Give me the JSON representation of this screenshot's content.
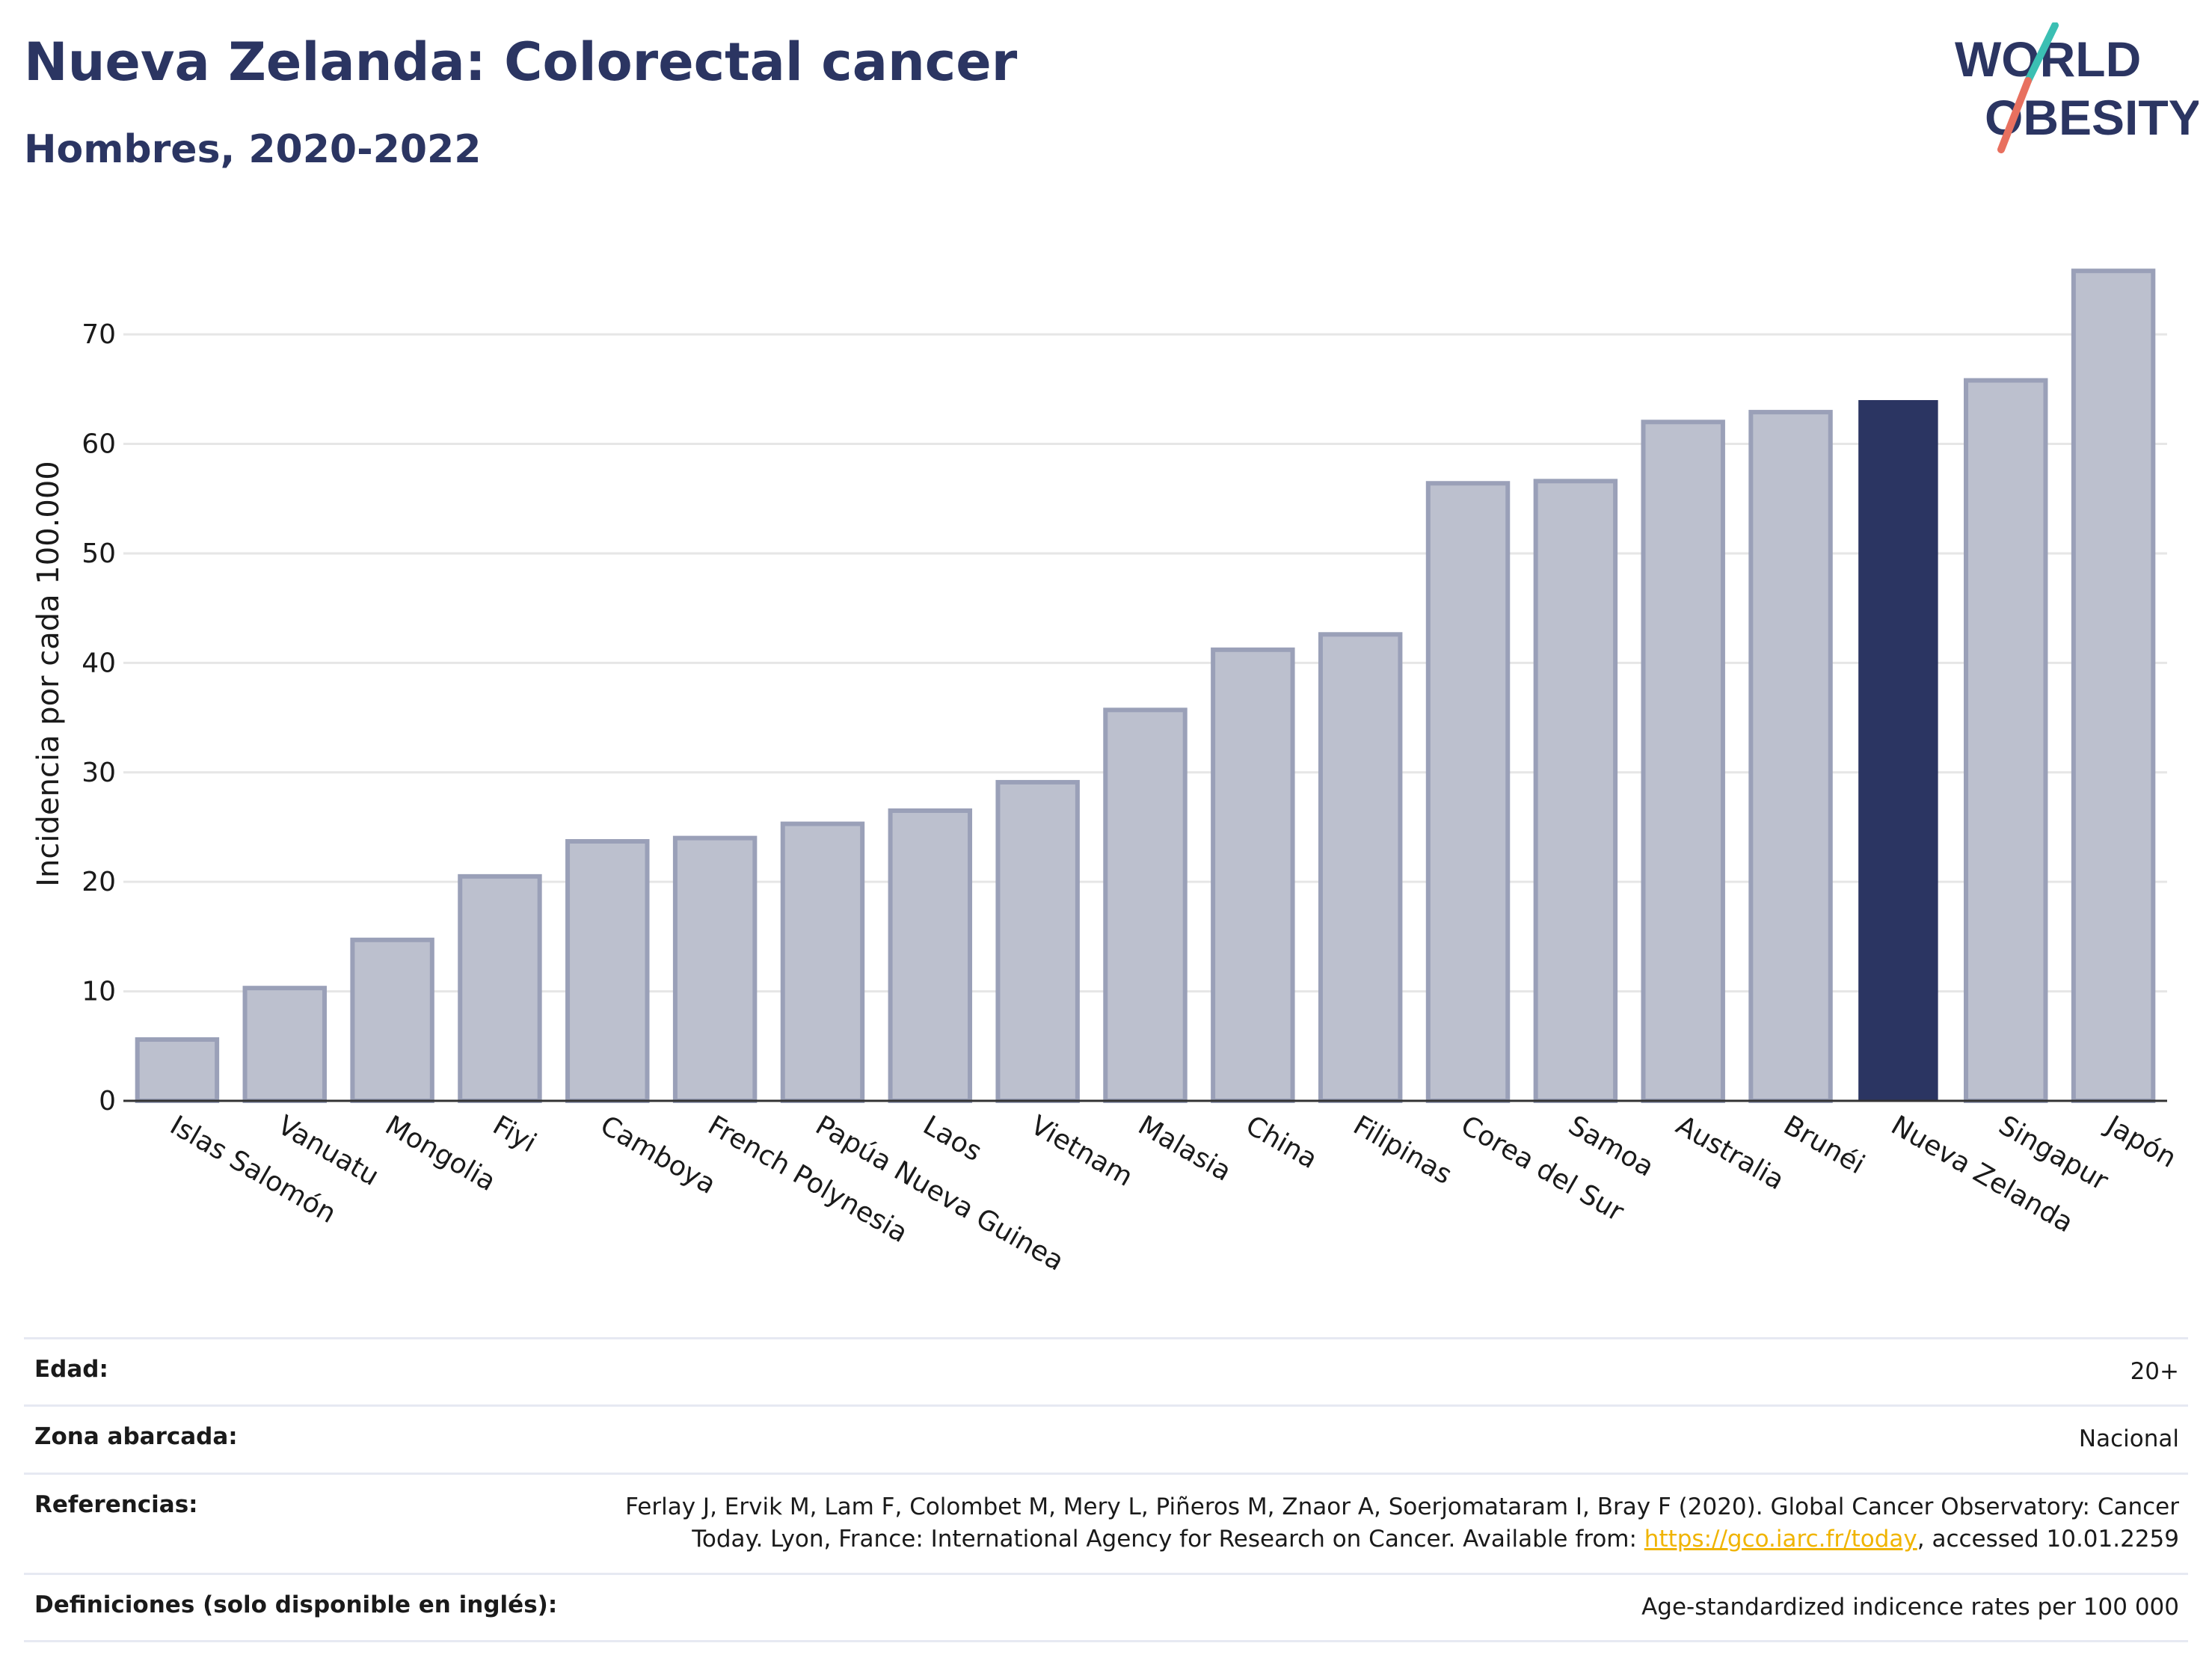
{
  "header": {
    "title": "Nueva Zelanda: Colorectal cancer",
    "subtitle": "Hombres, 2020-2022"
  },
  "logo": {
    "line1": "WORLD",
    "line2": "OBESITY"
  },
  "colors": {
    "bar": "#bcc0ce",
    "bar_stroke": "#9aa0b8",
    "highlight": "#2b3562",
    "grid": "#e6e6e6",
    "axis": "#333333",
    "link": "#f0b400"
  },
  "chart_data": {
    "type": "bar",
    "ylabel": "Incidencia por cada 100.000",
    "ylim": [
      0,
      78
    ],
    "yticks": [
      0,
      10,
      20,
      30,
      40,
      50,
      60,
      70
    ],
    "grid": true,
    "highlight": "Nueva Zelanda",
    "categories": [
      "Islas Salomón",
      "Vanuatu",
      "Mongolia",
      "Fiyi",
      "Camboya",
      "French Polynesia",
      "Papúa Nueva Guinea",
      "Laos",
      "Vietnam",
      "Malasia",
      "China",
      "Filipinas",
      "Corea del Sur",
      "Samoa",
      "Australia",
      "Brunéi",
      "Nueva Zelanda",
      "Singapur",
      "Japón"
    ],
    "values": [
      5.6,
      10.3,
      14.7,
      20.5,
      23.7,
      24.0,
      25.3,
      26.5,
      29.1,
      35.7,
      41.2,
      42.6,
      56.4,
      56.6,
      62.0,
      62.9,
      64.0,
      65.8,
      75.8
    ]
  },
  "info": [
    {
      "label": "Edad:",
      "value": "20+"
    },
    {
      "label": "Zona abarcada:",
      "value": "Nacional"
    },
    {
      "label": "Referencias:",
      "value_line1": "Ferlay J, Ervik M, Lam F, Colombet M, Mery L, Piñeros M, Znaor A, Soerjomataram I, Bray F (2020). Global Cancer Observatory: Cancer",
      "value_pre": "Today. Lyon, France: International Agency for Research on Cancer. Available from: ",
      "link": "https://gco.iarc.fr/today",
      "value_post": ", accessed 10.01.2259"
    },
    {
      "label": "Definiciones (solo disponible en inglés):",
      "value": "Age-standardized indicence rates per 100 000"
    }
  ]
}
